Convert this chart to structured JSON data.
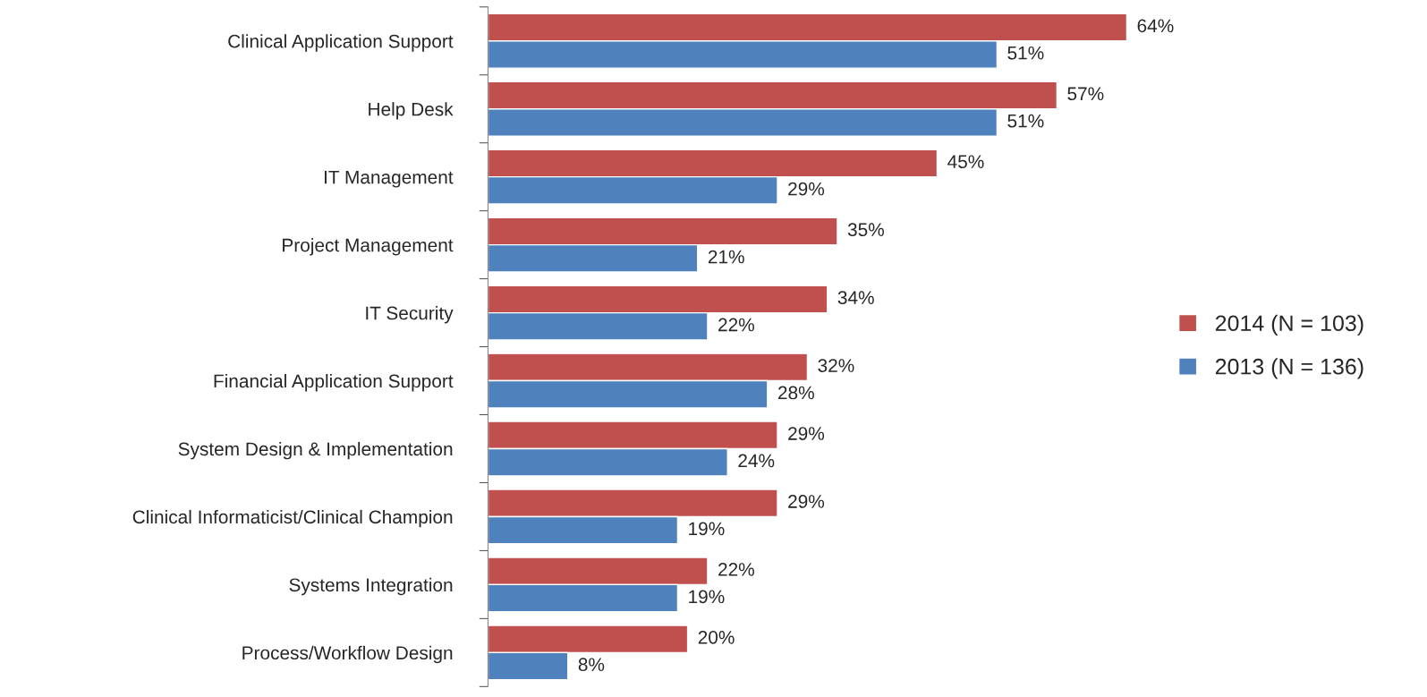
{
  "chart_data": {
    "type": "bar",
    "orientation": "horizontal",
    "categories": [
      "Clinical Application Support",
      "Help Desk",
      "IT Management",
      "Project Management",
      "IT Security",
      "Financial Application Support",
      "System Design & Implementation",
      "Clinical Informaticist/Clinical Champion",
      "Systems Integration",
      "Process/Workflow Design"
    ],
    "series": [
      {
        "name": "2014 (N = 103)",
        "color": "#c0504d",
        "values": [
          64,
          57,
          45,
          35,
          34,
          32,
          29,
          29,
          22,
          20
        ],
        "value_labels": [
          "64%",
          "57%",
          "45%",
          "35%",
          "34%",
          "32%",
          "29%",
          "29%",
          "22%",
          "20%"
        ]
      },
      {
        "name": "2013 (N = 136)",
        "color": "#4f81bd",
        "values": [
          51,
          51,
          29,
          21,
          22,
          28,
          24,
          19,
          19,
          8
        ],
        "value_labels": [
          "51%",
          "51%",
          "29%",
          "21%",
          "22%",
          "28%",
          "24%",
          "19%",
          "19%",
          "8%"
        ]
      }
    ],
    "legend": "right",
    "grid": false,
    "tick_labels": "y"
  }
}
